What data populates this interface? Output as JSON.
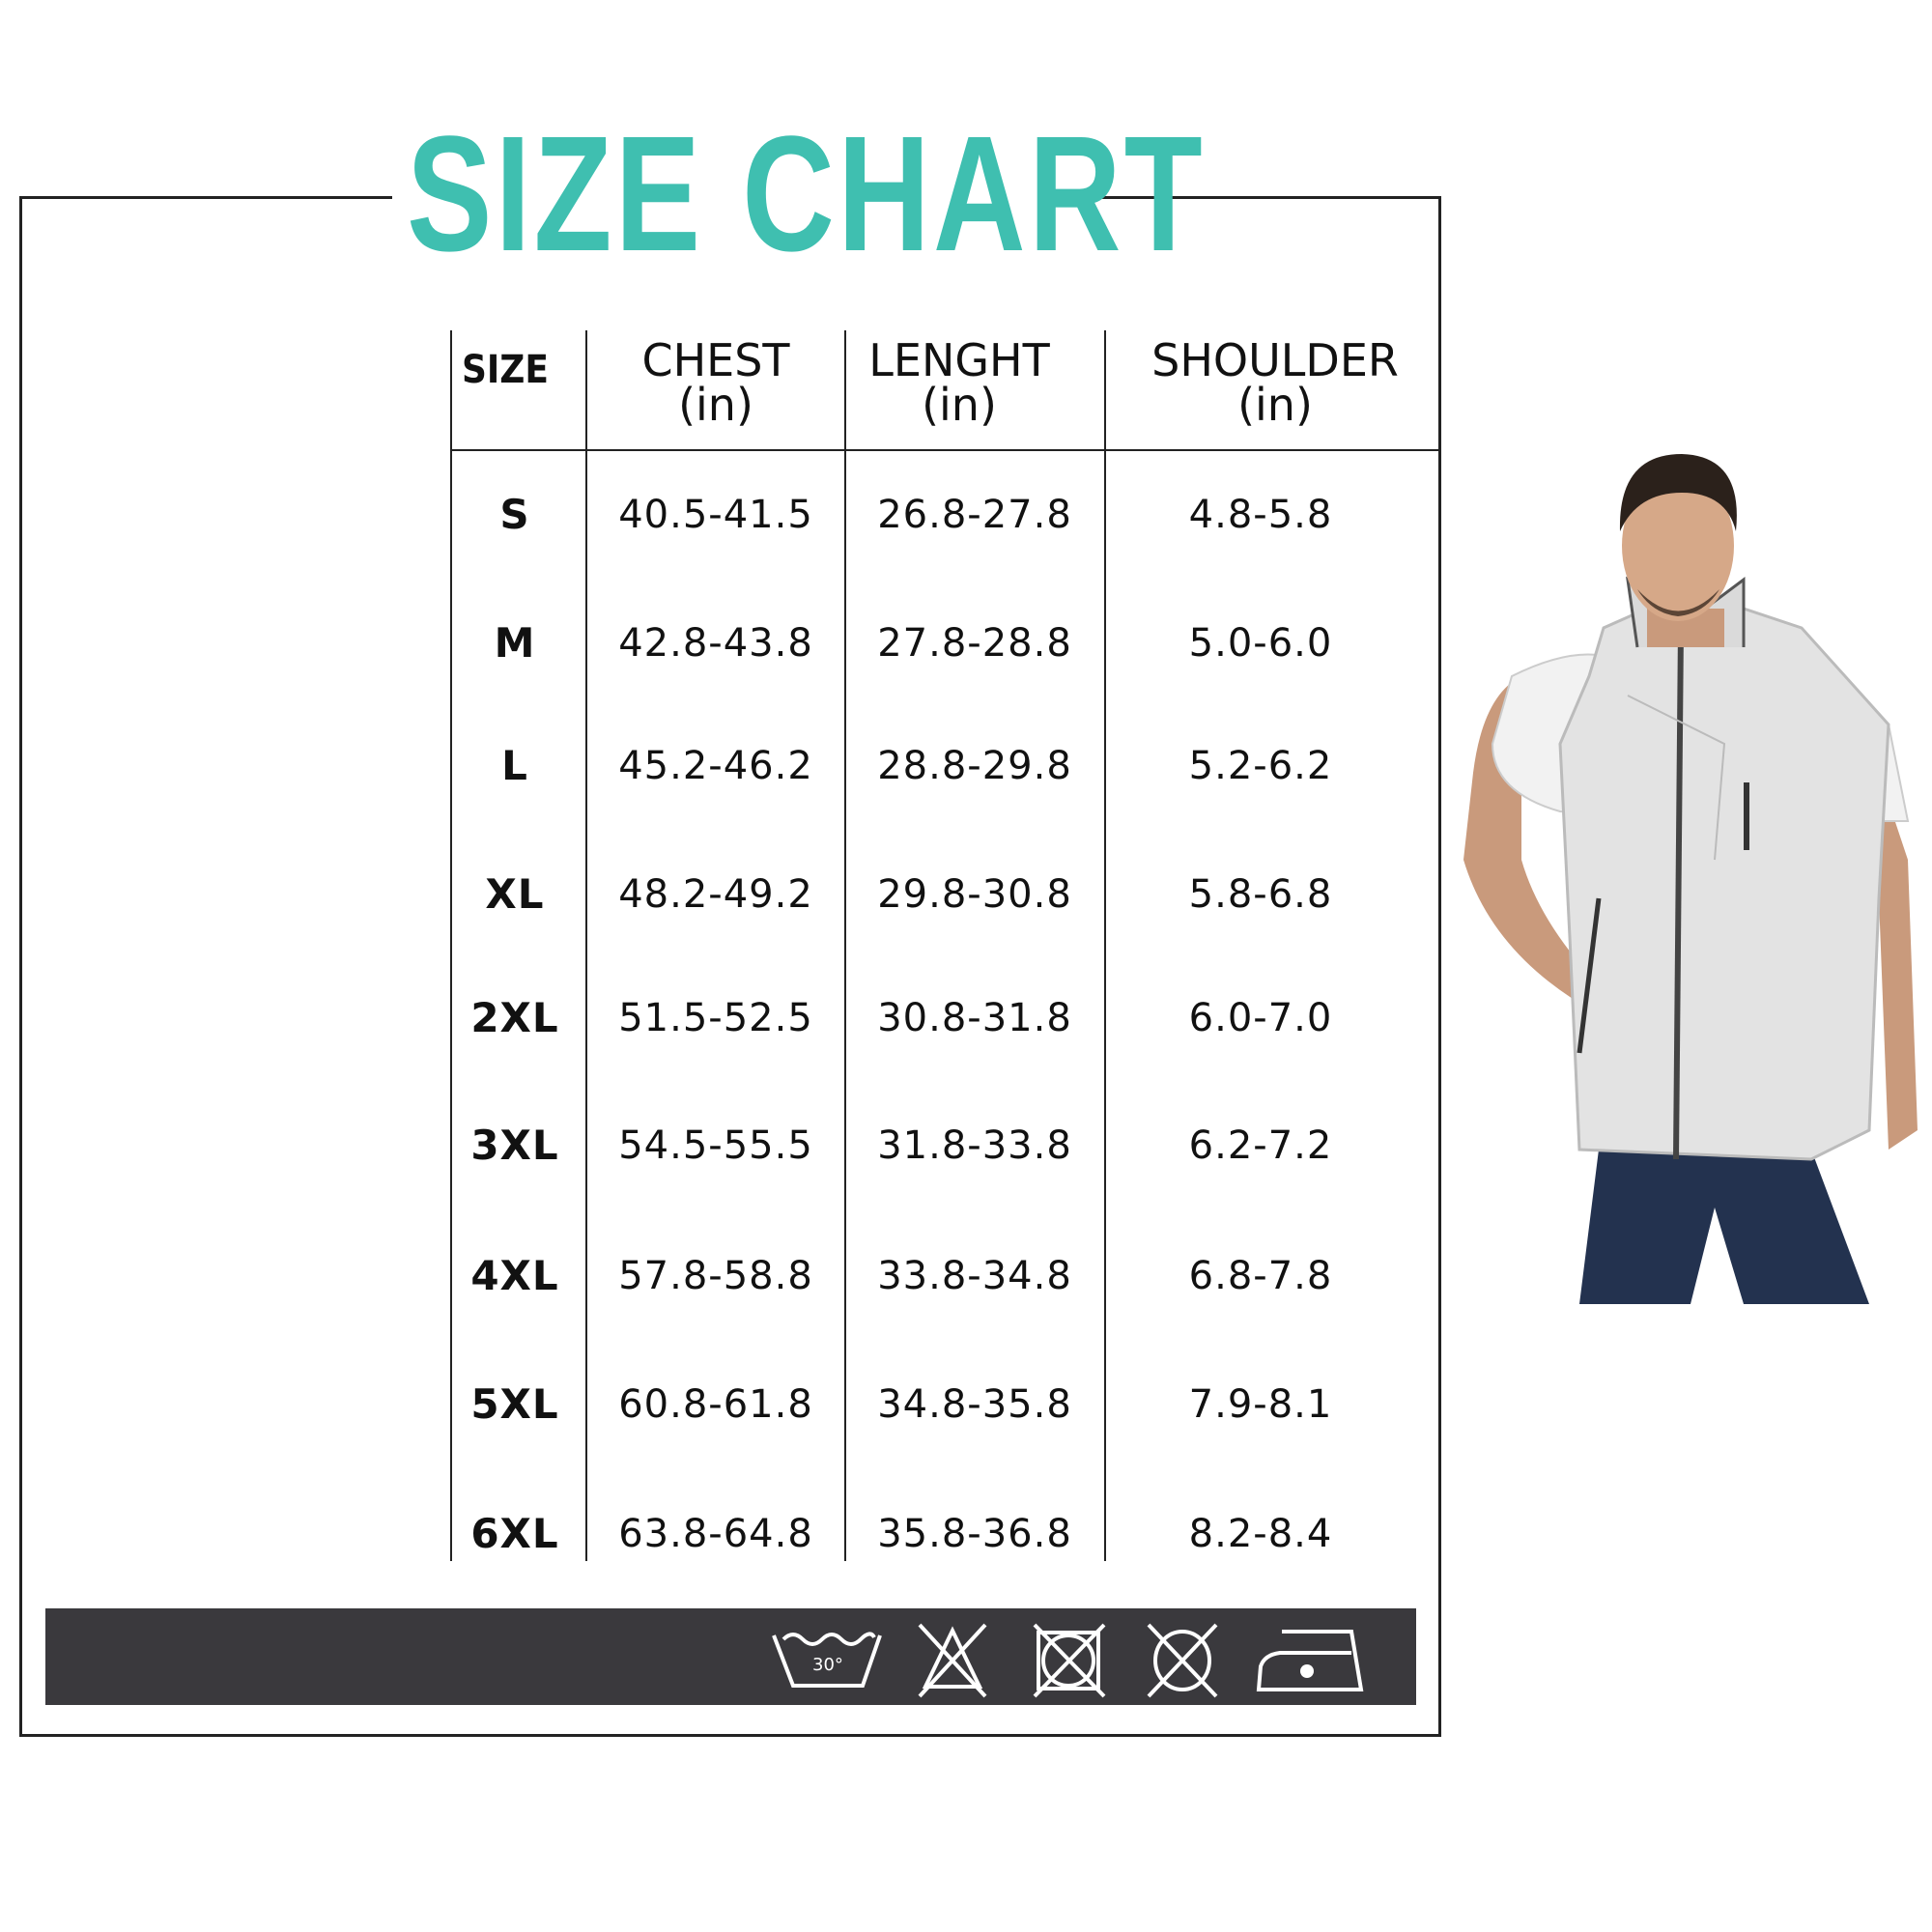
{
  "title": "SIZE CHART",
  "accent_color": "#3fbfb0",
  "headers": [
    {
      "label": "SIZE",
      "unit": ""
    },
    {
      "label": "CHEST",
      "unit": "(in)"
    },
    {
      "label": "LENGHT",
      "unit": "(in)"
    },
    {
      "label": "SHOULDER",
      "unit": "(in)"
    }
  ],
  "rows": [
    {
      "size": "S",
      "chest": "40.5-41.5",
      "length": "26.8-27.8",
      "shoulder": "4.8-5.8"
    },
    {
      "size": "M",
      "chest": "42.8-43.8",
      "length": "27.8-28.8",
      "shoulder": "5.0-6.0"
    },
    {
      "size": "L",
      "chest": "45.2-46.2",
      "length": "28.8-29.8",
      "shoulder": "5.2-6.2"
    },
    {
      "size": "XL",
      "chest": "48.2-49.2",
      "length": "29.8-30.8",
      "shoulder": "5.8-6.8"
    },
    {
      "size": "2XL",
      "chest": "51.5-52.5",
      "length": "30.8-31.8",
      "shoulder": "6.0-7.0"
    },
    {
      "size": "3XL",
      "chest": "54.5-55.5",
      "length": "31.8-33.8",
      "shoulder": "6.2-7.2"
    },
    {
      "size": "4XL",
      "chest": "57.8-58.8",
      "length": "33.8-34.8",
      "shoulder": "6.8-7.8"
    },
    {
      "size": "5XL",
      "chest": "60.8-61.8",
      "length": "34.8-35.8",
      "shoulder": "7.9-8.1"
    },
    {
      "size": "6XL",
      "chest": "63.8-64.8",
      "length": "35.8-36.8",
      "shoulder": "8.2-8.4"
    }
  ],
  "care_icons": [
    {
      "name": "wash-30-icon",
      "text": "30°"
    },
    {
      "name": "do-not-bleach-icon"
    },
    {
      "name": "do-not-tumble-dry-icon"
    },
    {
      "name": "do-not-dry-clean-icon"
    },
    {
      "name": "iron-low-heat-icon"
    }
  ],
  "care_bar_color": "#3a393d"
}
